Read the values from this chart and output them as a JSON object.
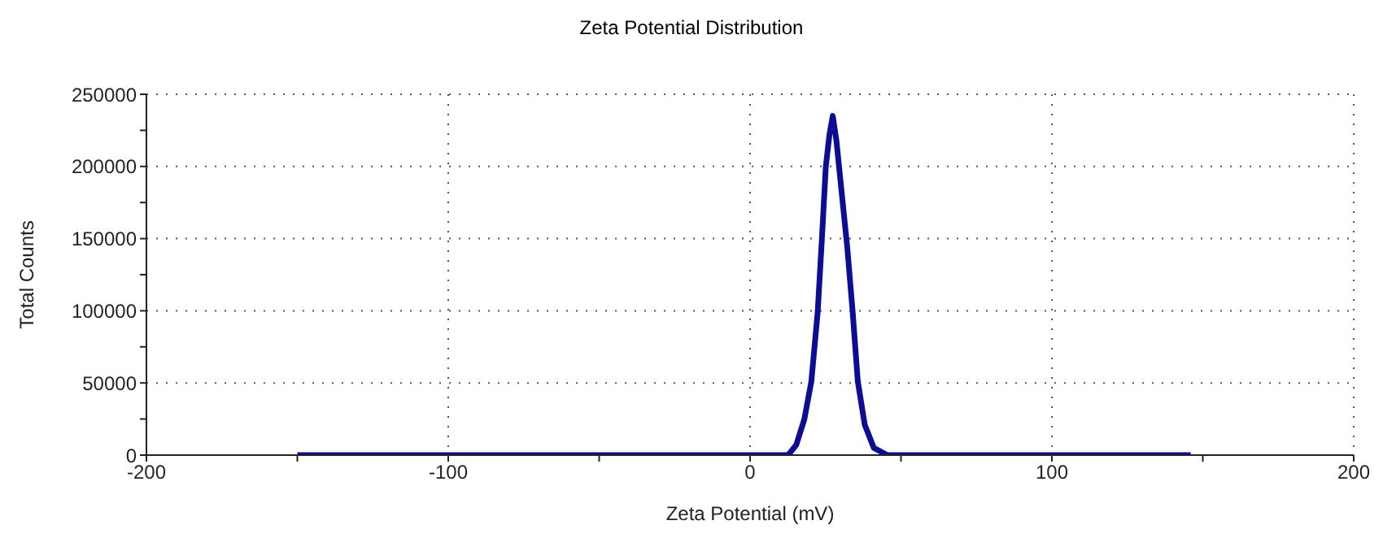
{
  "chart_data": {
    "type": "line",
    "title": "Zeta Potential Distribution",
    "xlabel": "Zeta Potential (mV)",
    "ylabel": "Total Counts",
    "xlim": [
      -200,
      200
    ],
    "xticks": [
      -200,
      {
        "value": -150,
        "label": null
      },
      -100,
      {
        "value": -50,
        "label": null
      },
      0,
      {
        "value": 50,
        "label": null
      },
      100,
      {
        "value": 150,
        "label": null
      },
      200
    ],
    "ylim": [
      0,
      250000
    ],
    "yticks": [
      0,
      {
        "value": 25000,
        "label": null
      },
      50000,
      {
        "value": 75000,
        "label": null
      },
      100000,
      {
        "value": 125000,
        "label": null
      },
      150000,
      {
        "value": 175000,
        "label": null
      },
      200000,
      {
        "value": 225000,
        "label": null
      },
      250000
    ],
    "grid": true,
    "marker": "none",
    "line_style": "solid",
    "series": [
      {
        "color": "#0c0c94",
        "x": [
          -150,
          12.6,
          15.3,
          18,
          20.3,
          22.4,
          23.8,
          25.1,
          26.3,
          27.4,
          28.6,
          30.4,
          32.2,
          34,
          35.7,
          38,
          41,
          45.5,
          146
        ],
        "values": [
          0,
          0,
          7000,
          25000,
          51000,
          99000,
          150000,
          200000,
          222000,
          235000,
          218000,
          181000,
          144000,
          99000,
          51000,
          21000,
          5000,
          0,
          0
        ]
      }
    ]
  }
}
